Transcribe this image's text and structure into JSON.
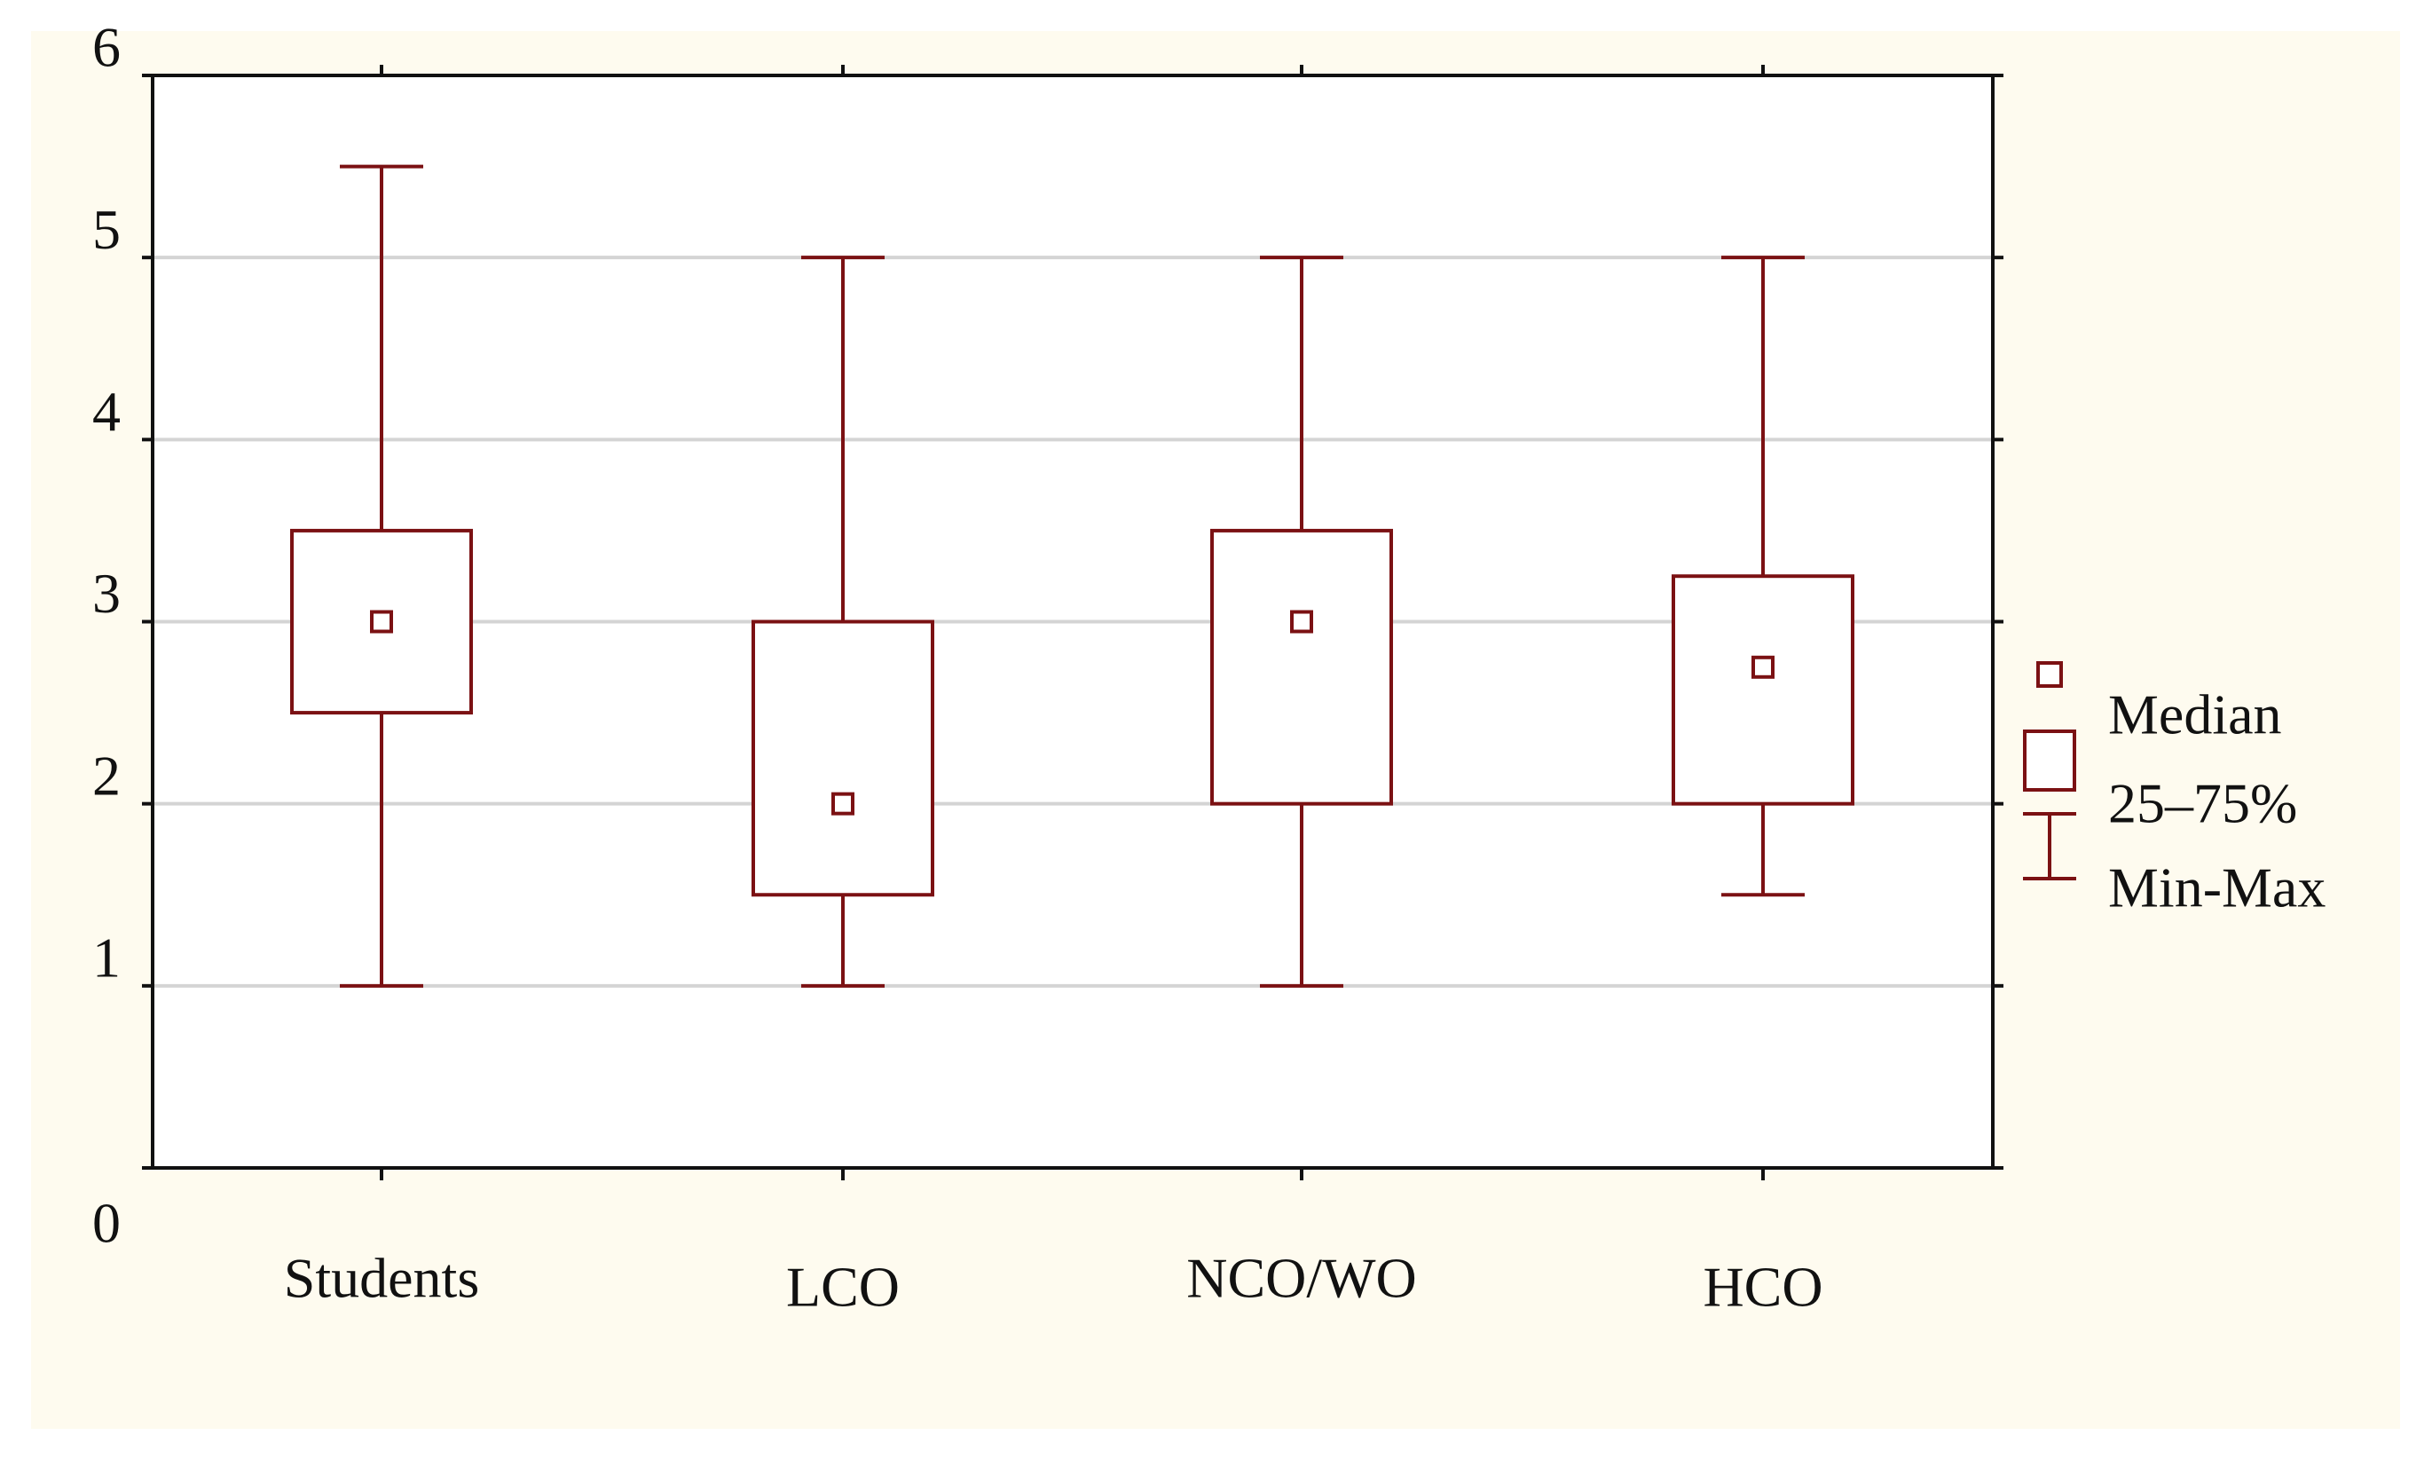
{
  "colors": {
    "page_background": "#ffffff",
    "panel_background": "#fefbef",
    "plot_background": "#ffffff",
    "series": "#7b1113",
    "gridline": "#d4d4d4",
    "axis": "#111111"
  },
  "chart_data": {
    "type": "boxplot",
    "title": "",
    "xlabel": "",
    "ylabel": "",
    "ylim": [
      0,
      6
    ],
    "yticks": [
      "0",
      "1",
      "2",
      "3",
      "4",
      "5",
      "6"
    ],
    "grid": "horizontal",
    "legend_position": "right",
    "categories": [
      "Students",
      "LCO",
      "NCO/WO",
      "HCO"
    ],
    "series": [
      {
        "category": "Students",
        "min": 1,
        "q1": 2.5,
        "median": 3,
        "q3": 3.5,
        "max": 5.5
      },
      {
        "category": "LCO",
        "min": 1,
        "q1": 1.5,
        "median": 2,
        "q3": 3,
        "max": 5
      },
      {
        "category": "NCO/WO",
        "min": 1,
        "q1": 2,
        "median": 3,
        "q3": 3.5,
        "max": 5
      },
      {
        "category": "HCO",
        "min": 1.5,
        "q1": 2,
        "median": 2.75,
        "q3": 3.25,
        "max": 5
      }
    ],
    "legend": [
      {
        "symbol": "median-marker",
        "label": "Median"
      },
      {
        "symbol": "box",
        "label": "25–75%"
      },
      {
        "symbol": "whisker",
        "label": "Min-Max"
      }
    ]
  }
}
